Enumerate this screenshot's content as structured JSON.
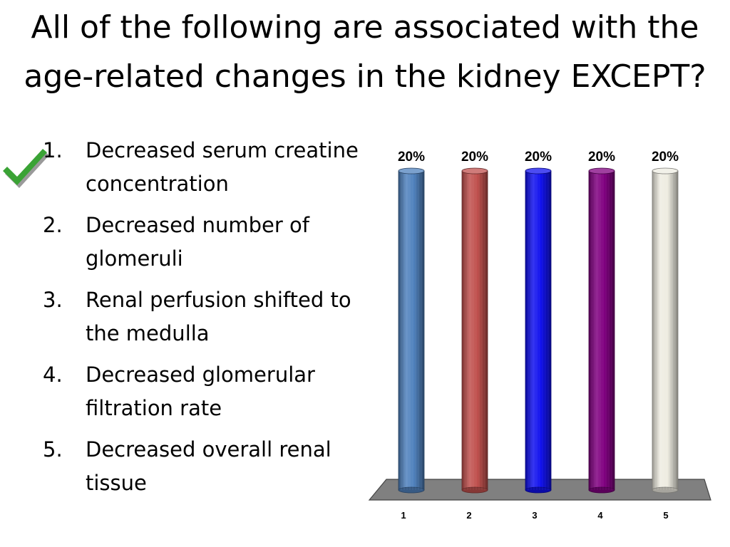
{
  "slide": {
    "title": "All of the following are associated with the age-related changes in the kidney EXCEPT?",
    "answers": [
      {
        "number": "1.",
        "text": "Decreased serum creatine concentration",
        "correct": true
      },
      {
        "number": "2.",
        "text": "Decreased number of glomeruli"
      },
      {
        "number": "3.",
        "text": "Renal perfusion shifted to the medulla"
      },
      {
        "number": "4.",
        "text": "Decreased glomerular filtration rate"
      },
      {
        "number": "5.",
        "text": "Decreased overall renal tissue"
      }
    ],
    "check_icon": "checkmark-icon",
    "check_color": "#3aa335"
  },
  "chart_data": {
    "type": "bar",
    "categories": [
      "1",
      "2",
      "3",
      "4",
      "5"
    ],
    "values": [
      20,
      20,
      20,
      20,
      20
    ],
    "value_labels": [
      "20%",
      "20%",
      "20%",
      "20%",
      "20%"
    ],
    "ylim": [
      0,
      20
    ],
    "colors": [
      "#4f81bd",
      "#c0504d",
      "#1010ee",
      "#800080",
      "#eeece1"
    ],
    "grid": false,
    "legend": false
  }
}
